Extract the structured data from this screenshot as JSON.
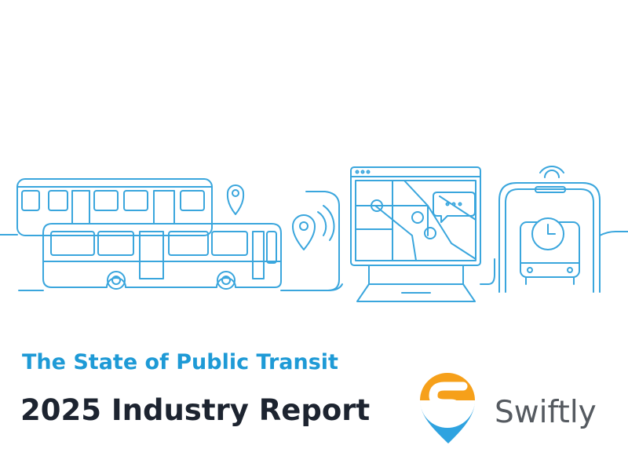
{
  "cover": {
    "subtitle": "The State of Public Transit",
    "title": "2025 Industry Report",
    "brand": "Swiftly"
  }
}
